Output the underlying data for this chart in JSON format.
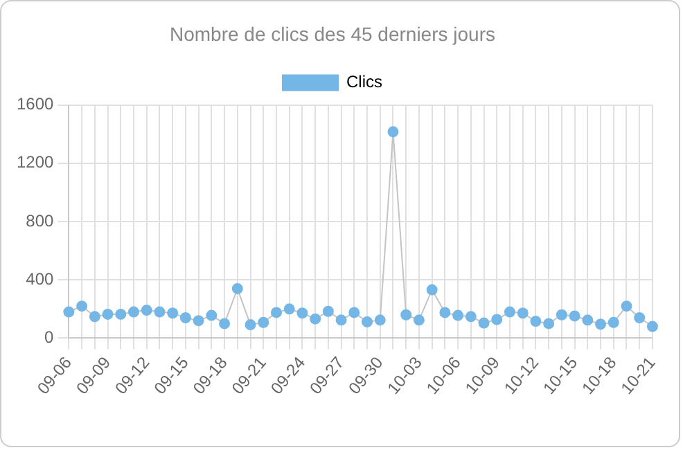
{
  "chart_data": {
    "type": "line",
    "title": "Nombre de clics des 45 derniers jours",
    "categories": [
      "09-06",
      null,
      null,
      "09-09",
      null,
      null,
      "09-12",
      null,
      null,
      "09-15",
      null,
      null,
      "09-18",
      null,
      null,
      "09-21",
      null,
      null,
      "09-24",
      null,
      null,
      "09-27",
      null,
      null,
      "09-30",
      null,
      null,
      "10-03",
      null,
      null,
      "10-06",
      null,
      null,
      "10-09",
      null,
      null,
      "10-12",
      null,
      null,
      "10-15",
      null,
      null,
      "10-18",
      null,
      null,
      "10-21"
    ],
    "series": [
      {
        "name": "Clics",
        "color": "#74b6e6",
        "values": [
          180,
          220,
          148,
          164,
          164,
          180,
          192,
          180,
          172,
          140,
          120,
          156,
          100,
          340,
          92,
          108,
          176,
          200,
          172,
          132,
          184,
          124,
          176,
          112,
          124,
          1416,
          160,
          124,
          332,
          176,
          156,
          148,
          104,
          128,
          180,
          172,
          116,
          100,
          160,
          152,
          124,
          96,
          108,
          220,
          140,
          80
        ]
      }
    ],
    "ylim": [
      0,
      1600
    ],
    "yticks": [
      0,
      400,
      800,
      1200,
      1600
    ],
    "grid": true,
    "legend": "top",
    "marker": "circle",
    "line_style": "solid"
  }
}
